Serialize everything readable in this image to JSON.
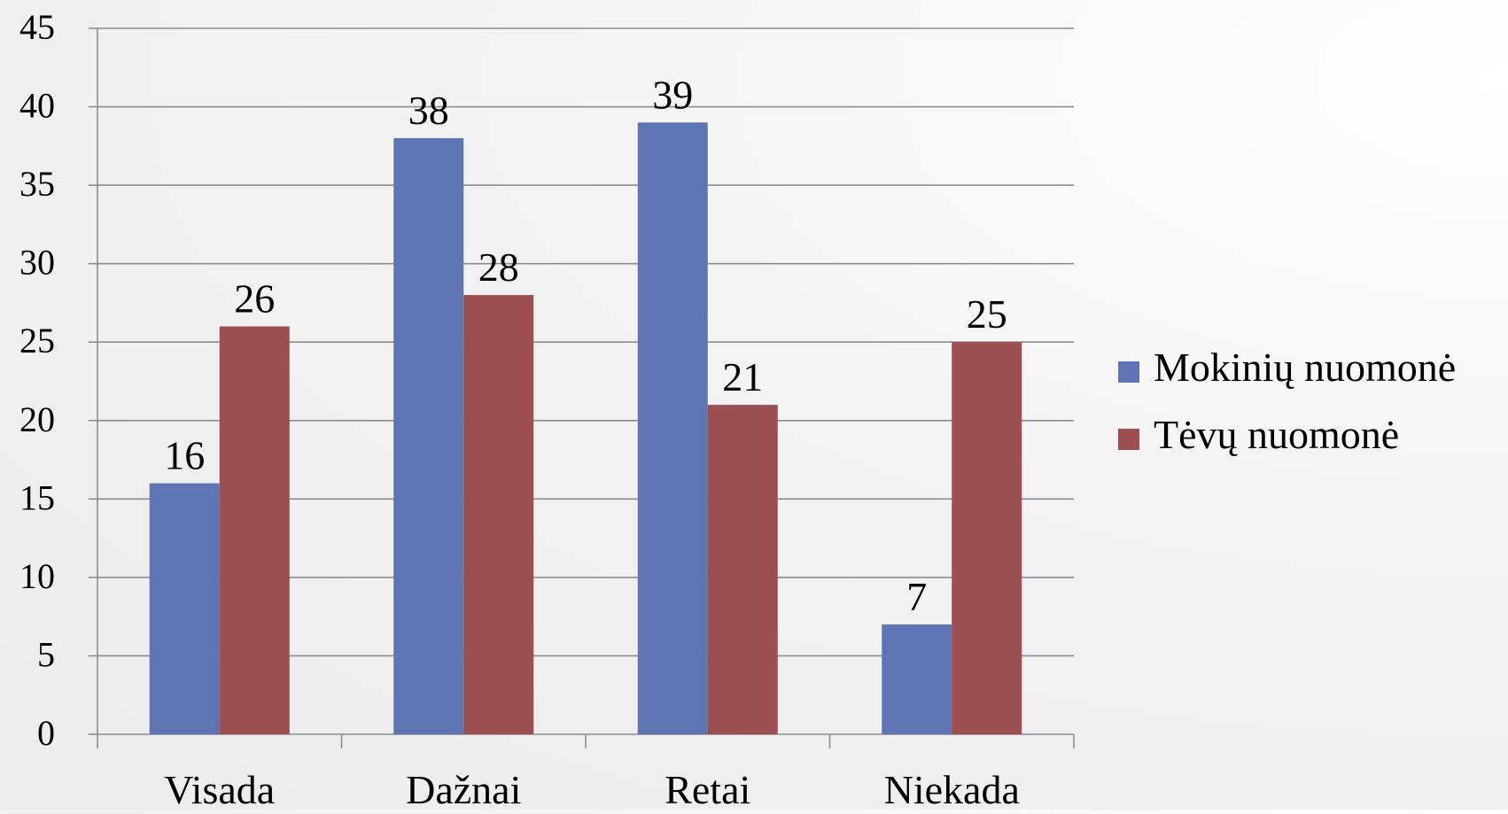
{
  "chart_data": {
    "type": "bar",
    "categories": [
      "Visada",
      "Dažnai",
      "Retai",
      "Niekada"
    ],
    "series": [
      {
        "name": "Mokinių nuomonė",
        "color": "#5f74b3",
        "values": [
          16,
          38,
          39,
          7
        ]
      },
      {
        "name": "Tėvų nuomonė",
        "color": "#9c4f51",
        "values": [
          26,
          28,
          21,
          25
        ]
      }
    ],
    "ylim": [
      0,
      45
    ],
    "yticks": [
      0,
      5,
      10,
      15,
      20,
      25,
      30,
      35,
      40,
      45
    ],
    "grid": true,
    "legend_position": "right",
    "data_labels": true
  }
}
